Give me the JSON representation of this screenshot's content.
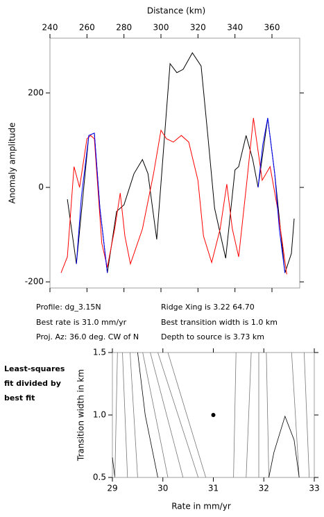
{
  "chart_data": [
    {
      "type": "line",
      "xlabel": "Distance (km)",
      "ylabel": "Anomaly amplitude",
      "xlim": [
        240,
        375
      ],
      "ylim": [
        -213,
        316
      ],
      "xticks": [
        240,
        260,
        280,
        300,
        320,
        340,
        360
      ],
      "yticks": [
        -200,
        0,
        200
      ],
      "series": [
        {
          "color": "#000000",
          "x": [
            249.4,
            254.3,
            261,
            264,
            267,
            271,
            276,
            280,
            285.4,
            290,
            293,
            297.7,
            304.9,
            308.6,
            312,
            317,
            321.7,
            325.5,
            329,
            335,
            340,
            342,
            346,
            349.6,
            352.5,
            357.7,
            361.5,
            367,
            370.5,
            372
          ],
          "values": [
            -25,
            -162,
            110,
            115,
            -44,
            -181,
            -51,
            -37,
            29,
            59,
            29,
            -110,
            262,
            243,
            250,
            285,
            257,
            103,
            -44,
            -150,
            37,
            44,
            110,
            59,
            0,
            147,
            29,
            -181,
            -140,
            -66
          ]
        },
        {
          "color": "#ff0000",
          "x": [
            246,
            249.4,
            253,
            256,
            260,
            262,
            264,
            268,
            271,
            275,
            278,
            280.5,
            283.5,
            290,
            296,
            300,
            303,
            306.7,
            311,
            315,
            320,
            323,
            327.4,
            332,
            335.6,
            338.6,
            342,
            346.5,
            350,
            354.7,
            359,
            363,
            368
          ],
          "values": [
            -181,
            -147,
            44,
            0,
            103,
            110,
            103,
            -118,
            -169,
            -88,
            -12,
            -103,
            -162,
            -88,
            29,
            121,
            103,
            96,
            110,
            96,
            15,
            -103,
            -159,
            -88,
            7,
            -88,
            -147,
            15,
            147,
            15,
            44,
            -44,
            -184
          ]
        },
        {
          "color": "#0000ff",
          "x": [
            254.3,
            257,
            261,
            264,
            267,
            271,
            null,
            352.5,
            355,
            357.7,
            361.5,
            364,
            367
          ],
          "values": [
            -162,
            -20,
            110,
            115,
            -44,
            -181,
            null,
            0,
            90,
            147,
            29,
            -90,
            -181
          ]
        }
      ]
    },
    {
      "type": "contour",
      "xlabel": "Rate in mm/yr",
      "ylabel": "Transition width in km",
      "xlim": [
        29,
        33
      ],
      "ylim": [
        0.5,
        1.5
      ],
      "xticks": [
        29,
        30,
        31,
        32,
        33
      ],
      "yticks": [
        0.5,
        {
          "value": 1.0,
          "label": "1.0"
        },
        1.5
      ],
      "annotation": [
        "Least-squares",
        "fit divided by",
        "best fit"
      ],
      "series": [
        {
          "color": "#000000",
          "x": [
            29.0,
            29.05
          ],
          "values": [
            0.66,
            0.5
          ]
        },
        {
          "color": "#777777",
          "x": [
            29.1,
            29.05
          ],
          "values": [
            1.5,
            0.5
          ]
        },
        {
          "color": "#777777",
          "x": [
            29.2,
            29.3
          ],
          "values": [
            1.5,
            0.5
          ]
        },
        {
          "color": "#777777",
          "x": [
            29.35,
            29.5
          ],
          "values": [
            1.5,
            0.5
          ]
        },
        {
          "color": "#000000",
          "x": [
            29.5,
            29.65,
            29.9
          ],
          "values": [
            1.5,
            1.0,
            0.5
          ]
        },
        {
          "color": "#777777",
          "x": [
            29.6,
            30.1
          ],
          "values": [
            1.5,
            0.5
          ]
        },
        {
          "color": "#777777",
          "x": [
            29.75,
            30.4
          ],
          "values": [
            1.5,
            0.5
          ]
        },
        {
          "color": "#777777",
          "x": [
            29.9,
            30.7
          ],
          "values": [
            1.5,
            0.5
          ]
        },
        {
          "color": "#777777",
          "x": [
            30.1,
            30.85
          ],
          "values": [
            1.5,
            0.5
          ]
        },
        {
          "color": "#777777",
          "x": [
            31.45,
            31.4
          ],
          "values": [
            1.5,
            0.5
          ]
        },
        {
          "color": "#777777",
          "x": [
            31.75,
            31.65
          ],
          "values": [
            1.5,
            0.5
          ]
        },
        {
          "color": "#777777",
          "x": [
            31.9,
            31.9
          ],
          "values": [
            1.5,
            0.5
          ]
        },
        {
          "color": "#777777",
          "x": [
            32.05,
            32.1
          ],
          "values": [
            1.5,
            0.5
          ]
        },
        {
          "color": "#777777",
          "x": [
            32.55,
            32.7
          ],
          "values": [
            1.5,
            0.5
          ]
        },
        {
          "color": "#777777",
          "x": [
            32.8,
            32.9
          ],
          "values": [
            1.5,
            0.5
          ]
        },
        {
          "color": "#000000",
          "x": [
            32.1,
            32.2,
            32.42,
            32.6,
            32.7
          ],
          "values": [
            0.5,
            0.7,
            0.99,
            0.8,
            0.5
          ]
        }
      ],
      "marker": {
        "x": 31,
        "y": 1.0
      }
    }
  ],
  "info": [
    "Profile: dg_3.15N",
    "Best rate is 31.0 mm/yr",
    "Proj. Az: 36.0 deg. CW of N",
    "Ridge Xing is 3.22 64.70",
    "Best transition width is 1.0 km",
    "Depth to source is   3.73 km"
  ]
}
